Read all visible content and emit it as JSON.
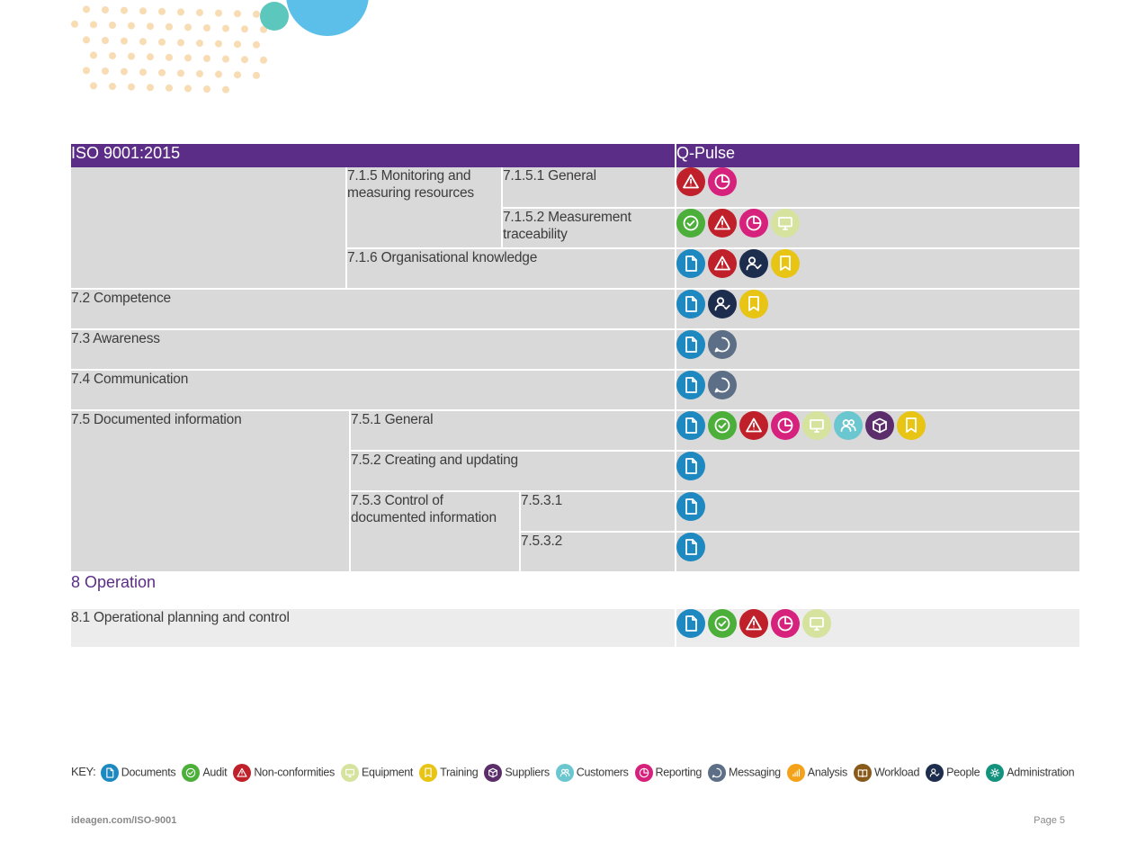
{
  "header": {
    "iso_title": "ISO 9001:2015",
    "qpulse_title": "Q-Pulse"
  },
  "rows": {
    "r715": "7.1.5 Monitoring and measuring resources",
    "r7151": "7.1.5.1 General",
    "r7152": "7.1.5.2 Measurement traceability",
    "r716": "7.1.6 Organisational knowledge",
    "r72": "7.2 Competence",
    "r73": "7.3 Awareness",
    "r74": "7.4 Communication",
    "r75": "7.5 Documented information",
    "r751": "7.5.1 General",
    "r752": "7.5.2 Creating and updating",
    "r753": "7.5.3 Control of documented information",
    "r7531": "7.5.3.1",
    "r7532": "7.5.3.2",
    "section8": "8 Operation",
    "r81": "8.1 Operational planning and control"
  },
  "row_icons": {
    "r7151": [
      "nonconformities-icon",
      "reporting-icon"
    ],
    "r7152": [
      "audit-icon",
      "nonconformities-icon",
      "reporting-icon",
      "equipment-icon"
    ],
    "r716": [
      "documents-icon",
      "nonconformities-icon",
      "people-icon",
      "training-icon"
    ],
    "r72": [
      "documents-icon",
      "people-icon",
      "training-icon"
    ],
    "r73": [
      "documents-icon",
      "messaging-icon"
    ],
    "r74": [
      "documents-icon",
      "messaging-icon"
    ],
    "r751": [
      "documents-icon",
      "audit-icon",
      "nonconformities-icon",
      "reporting-icon",
      "equipment-icon",
      "customers-icon",
      "suppliers-icon",
      "training-icon"
    ],
    "r752": [
      "documents-icon"
    ],
    "r7531": [
      "documents-icon"
    ],
    "r7532": [
      "documents-icon"
    ],
    "r81": [
      "documents-icon",
      "audit-icon",
      "nonconformities-icon",
      "reporting-icon",
      "equipment-icon"
    ]
  },
  "key": {
    "label": "KEY:",
    "items": [
      {
        "name": "documents-icon",
        "label": "Documents"
      },
      {
        "name": "audit-icon",
        "label": "Audit"
      },
      {
        "name": "nonconformities-icon",
        "label": "Non-conformities"
      },
      {
        "name": "equipment-icon",
        "label": "Equipment"
      },
      {
        "name": "training-icon",
        "label": "Training"
      },
      {
        "name": "suppliers-icon",
        "label": "Suppliers"
      },
      {
        "name": "customers-icon",
        "label": "Customers"
      },
      {
        "name": "reporting-icon",
        "label": "Reporting"
      },
      {
        "name": "messaging-icon",
        "label": "Messaging"
      },
      {
        "name": "analysis-icon",
        "label": "Analysis"
      },
      {
        "name": "workload-icon",
        "label": "Workload"
      },
      {
        "name": "people-icon",
        "label": "People"
      },
      {
        "name": "administration-icon",
        "label": "Administration"
      }
    ]
  },
  "colors": {
    "documents": "#1e88c0",
    "audit": "#4caf3a",
    "nonconformities": "#c0202a",
    "equipment": "#d6e39e",
    "training": "#e8c414",
    "suppliers": "#5b2d6b",
    "customers": "#6ac6cf",
    "reporting": "#d6217d",
    "messaging": "#5c6f86",
    "analysis": "#f5a21b",
    "workload": "#8a5a1a",
    "people": "#1d2d4e",
    "administration": "#13937e",
    "header": "#5b2d86"
  },
  "footer": {
    "url": "ideagen.com/ISO-9001",
    "page": "Page 5"
  }
}
